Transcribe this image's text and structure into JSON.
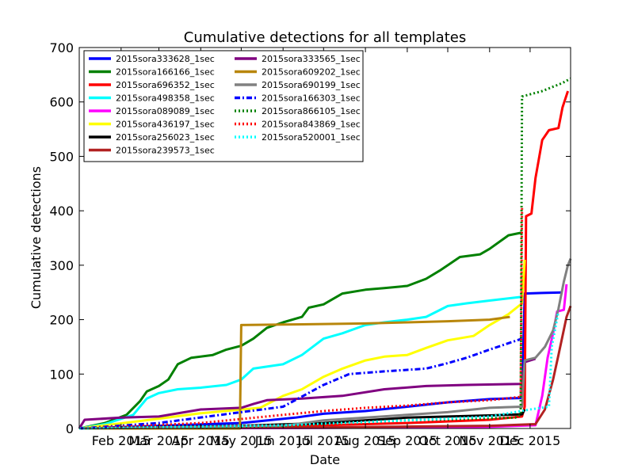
{
  "chart_data": {
    "type": "line",
    "title": "Cumulative detections for all templates",
    "xlabel": "Date",
    "ylabel": "Cumulative detections",
    "xlim": [
      "2015-01-01",
      "2015-12-31"
    ],
    "ylim": [
      0,
      700
    ],
    "grid": false,
    "legend_position": "top-left",
    "x_ticks": [
      {
        "date": "2015-02-01",
        "label": "Feb 2015"
      },
      {
        "date": "2015-03-01",
        "label": "Mar 2015"
      },
      {
        "date": "2015-04-01",
        "label": "Apr 2015"
      },
      {
        "date": "2015-05-01",
        "label": "May 2015"
      },
      {
        "date": "2015-06-01",
        "label": "Jun 2015"
      },
      {
        "date": "2015-07-01",
        "label": "Jul 2015"
      },
      {
        "date": "2015-08-01",
        "label": "Aug 2015"
      },
      {
        "date": "2015-09-01",
        "label": "Sep 2015"
      },
      {
        "date": "2015-10-01",
        "label": "Oct 2015"
      },
      {
        "date": "2015-11-01",
        "label": "Nov 2015"
      },
      {
        "date": "2015-12-01",
        "label": "Dec 2015"
      }
    ],
    "y_ticks": [
      0,
      100,
      200,
      300,
      400,
      500,
      600,
      700
    ],
    "series": [
      {
        "name": "2015sora333628_1sec",
        "color": "#0000ff",
        "style": "solid",
        "points": [
          [
            "2015-01-01",
            0
          ],
          [
            "2015-03-01",
            5
          ],
          [
            "2015-05-01",
            10
          ],
          [
            "2015-06-10",
            20
          ],
          [
            "2015-07-01",
            27
          ],
          [
            "2015-08-01",
            32
          ],
          [
            "2015-09-01",
            40
          ],
          [
            "2015-10-01",
            48
          ],
          [
            "2015-11-01",
            54
          ],
          [
            "2015-11-25",
            56
          ],
          [
            "2015-11-27",
            248
          ],
          [
            "2015-12-10",
            249
          ],
          [
            "2015-12-25",
            250
          ]
        ]
      },
      {
        "name": "2015sora166166_1sec",
        "color": "#008000",
        "style": "solid",
        "points": [
          [
            "2015-01-01",
            0
          ],
          [
            "2015-01-20",
            10
          ],
          [
            "2015-02-05",
            25
          ],
          [
            "2015-02-15",
            50
          ],
          [
            "2015-02-20",
            68
          ],
          [
            "2015-03-01",
            78
          ],
          [
            "2015-03-08",
            90
          ],
          [
            "2015-03-15",
            118
          ],
          [
            "2015-03-25",
            130
          ],
          [
            "2015-04-10",
            135
          ],
          [
            "2015-04-20",
            145
          ],
          [
            "2015-05-01",
            152
          ],
          [
            "2015-05-10",
            165
          ],
          [
            "2015-05-20",
            185
          ],
          [
            "2015-06-01",
            195
          ],
          [
            "2015-06-15",
            205
          ],
          [
            "2015-06-20",
            222
          ],
          [
            "2015-07-01",
            228
          ],
          [
            "2015-07-15",
            248
          ],
          [
            "2015-08-01",
            255
          ],
          [
            "2015-08-15",
            258
          ],
          [
            "2015-09-01",
            262
          ],
          [
            "2015-09-15",
            275
          ],
          [
            "2015-09-25",
            290
          ],
          [
            "2015-10-01",
            300
          ],
          [
            "2015-10-10",
            315
          ],
          [
            "2015-10-25",
            320
          ],
          [
            "2015-11-01",
            330
          ],
          [
            "2015-11-15",
            355
          ],
          [
            "2015-11-25",
            360
          ]
        ]
      },
      {
        "name": "2015sora696352_1sec",
        "color": "#ff0000",
        "style": "solid",
        "points": [
          [
            "2015-01-01",
            0
          ],
          [
            "2015-05-01",
            3
          ],
          [
            "2015-07-01",
            6
          ],
          [
            "2015-09-01",
            10
          ],
          [
            "2015-11-01",
            16
          ],
          [
            "2015-11-25",
            22
          ],
          [
            "2015-11-27",
            40
          ],
          [
            "2015-11-28",
            390
          ],
          [
            "2015-12-02",
            395
          ],
          [
            "2015-12-05",
            460
          ],
          [
            "2015-12-10",
            530
          ],
          [
            "2015-12-15",
            548
          ],
          [
            "2015-12-22",
            552
          ],
          [
            "2015-12-25",
            590
          ],
          [
            "2015-12-29",
            620
          ]
        ]
      },
      {
        "name": "2015sora498358_1sec",
        "color": "#00ffff",
        "style": "solid",
        "points": [
          [
            "2015-01-01",
            0
          ],
          [
            "2015-01-20",
            8
          ],
          [
            "2015-02-10",
            25
          ],
          [
            "2015-02-20",
            55
          ],
          [
            "2015-03-01",
            65
          ],
          [
            "2015-03-15",
            72
          ],
          [
            "2015-04-01",
            75
          ],
          [
            "2015-04-20",
            80
          ],
          [
            "2015-05-01",
            90
          ],
          [
            "2015-05-10",
            110
          ],
          [
            "2015-06-01",
            118
          ],
          [
            "2015-06-15",
            135
          ],
          [
            "2015-07-01",
            165
          ],
          [
            "2015-07-15",
            175
          ],
          [
            "2015-08-01",
            190
          ],
          [
            "2015-08-15",
            195
          ],
          [
            "2015-09-01",
            200
          ],
          [
            "2015-09-15",
            205
          ],
          [
            "2015-10-01",
            225
          ],
          [
            "2015-10-15",
            230
          ],
          [
            "2015-11-01",
            235
          ],
          [
            "2015-11-25",
            242
          ]
        ]
      },
      {
        "name": "2015sora089089_1sec",
        "color": "#ff00ff",
        "style": "solid",
        "points": [
          [
            "2015-01-01",
            0
          ],
          [
            "2015-07-01",
            1
          ],
          [
            "2015-11-01",
            3
          ],
          [
            "2015-12-05",
            6
          ],
          [
            "2015-12-10",
            60
          ],
          [
            "2015-12-14",
            130
          ],
          [
            "2015-12-18",
            175
          ],
          [
            "2015-12-21",
            215
          ],
          [
            "2015-12-26",
            218
          ],
          [
            "2015-12-28",
            265
          ]
        ]
      },
      {
        "name": "2015sora436197_1sec",
        "color": "#ffff00",
        "style": "solid",
        "points": [
          [
            "2015-01-01",
            0
          ],
          [
            "2015-03-01",
            18
          ],
          [
            "2015-04-01",
            28
          ],
          [
            "2015-05-15",
            38
          ],
          [
            "2015-06-01",
            60
          ],
          [
            "2015-06-15",
            72
          ],
          [
            "2015-07-01",
            95
          ],
          [
            "2015-07-15",
            110
          ],
          [
            "2015-08-01",
            125
          ],
          [
            "2015-08-15",
            132
          ],
          [
            "2015-09-01",
            135
          ],
          [
            "2015-09-15",
            148
          ],
          [
            "2015-10-01",
            162
          ],
          [
            "2015-10-20",
            170
          ],
          [
            "2015-11-01",
            190
          ],
          [
            "2015-11-15",
            210
          ],
          [
            "2015-11-25",
            230
          ],
          [
            "2015-11-27",
            310
          ]
        ]
      },
      {
        "name": "2015sora256023_1sec",
        "color": "#000000",
        "style": "solid",
        "points": [
          [
            "2015-01-01",
            0
          ],
          [
            "2015-05-01",
            5
          ],
          [
            "2015-07-01",
            10
          ],
          [
            "2015-09-01",
            20
          ],
          [
            "2015-11-01",
            24
          ],
          [
            "2015-11-25",
            26
          ],
          [
            "2015-11-27",
            35
          ]
        ]
      },
      {
        "name": "2015sora239573_1sec",
        "color": "#b22222",
        "style": "solid",
        "points": [
          [
            "2015-01-01",
            0
          ],
          [
            "2015-07-01",
            2
          ],
          [
            "2015-11-01",
            5
          ],
          [
            "2015-12-05",
            8
          ],
          [
            "2015-12-12",
            35
          ],
          [
            "2015-12-18",
            90
          ],
          [
            "2015-12-22",
            135
          ],
          [
            "2015-12-25",
            170
          ],
          [
            "2015-12-28",
            205
          ],
          [
            "2015-12-31",
            225
          ]
        ]
      },
      {
        "name": "2015sora333565_1sec",
        "color": "#800080",
        "style": "solid",
        "points": [
          [
            "2015-01-01",
            0
          ],
          [
            "2015-01-05",
            16
          ],
          [
            "2015-02-01",
            20
          ],
          [
            "2015-03-01",
            22
          ],
          [
            "2015-04-01",
            35
          ],
          [
            "2015-05-01",
            38
          ],
          [
            "2015-05-10",
            45
          ],
          [
            "2015-05-20",
            52
          ],
          [
            "2015-06-15",
            55
          ],
          [
            "2015-07-15",
            60
          ],
          [
            "2015-08-15",
            72
          ],
          [
            "2015-09-15",
            78
          ],
          [
            "2015-10-15",
            80
          ],
          [
            "2015-11-25",
            82
          ],
          [
            "2015-11-27",
            122
          ],
          [
            "2015-12-05",
            128
          ]
        ]
      },
      {
        "name": "2015sora609202_1sec",
        "color": "#b8860b",
        "style": "solid",
        "points": [
          [
            "2015-01-01",
            0
          ],
          [
            "2015-04-30",
            0
          ],
          [
            "2015-05-01",
            190
          ],
          [
            "2015-06-01",
            191
          ],
          [
            "2015-07-01",
            192
          ],
          [
            "2015-08-01",
            193
          ],
          [
            "2015-09-01",
            195
          ],
          [
            "2015-10-01",
            197
          ],
          [
            "2015-11-01",
            200
          ],
          [
            "2015-11-16",
            205
          ]
        ]
      },
      {
        "name": "2015sora690199_1sec",
        "color": "#808080",
        "style": "solid",
        "points": [
          [
            "2015-01-01",
            0
          ],
          [
            "2015-06-01",
            5
          ],
          [
            "2015-07-01",
            15
          ],
          [
            "2015-09-01",
            25
          ],
          [
            "2015-10-01",
            30
          ],
          [
            "2015-11-01",
            38
          ],
          [
            "2015-11-25",
            40
          ],
          [
            "2015-11-27",
            125
          ],
          [
            "2015-12-05",
            130
          ],
          [
            "2015-12-12",
            150
          ],
          [
            "2015-12-18",
            180
          ],
          [
            "2015-12-22",
            220
          ],
          [
            "2015-12-26",
            270
          ],
          [
            "2015-12-29",
            300
          ],
          [
            "2015-12-31",
            312
          ]
        ]
      },
      {
        "name": "2015sora166303_1sec",
        "color": "#0000ff",
        "style": "dashdot",
        "points": [
          [
            "2015-01-01",
            0
          ],
          [
            "2015-03-01",
            10
          ],
          [
            "2015-05-01",
            30
          ],
          [
            "2015-06-01",
            40
          ],
          [
            "2015-07-01",
            80
          ],
          [
            "2015-07-20",
            100
          ],
          [
            "2015-08-15",
            105
          ],
          [
            "2015-09-15",
            110
          ],
          [
            "2015-10-01",
            120
          ],
          [
            "2015-10-15",
            130
          ],
          [
            "2015-11-01",
            145
          ],
          [
            "2015-11-25",
            165
          ]
        ]
      },
      {
        "name": "2015sora866105_1sec",
        "color": "#008000",
        "style": "dotted",
        "points": [
          [
            "2015-01-01",
            0
          ],
          [
            "2015-06-01",
            5
          ],
          [
            "2015-09-01",
            15
          ],
          [
            "2015-11-20",
            20
          ],
          [
            "2015-11-24",
            25
          ],
          [
            "2015-11-25",
            610
          ],
          [
            "2015-12-10",
            620
          ],
          [
            "2015-12-25",
            635
          ],
          [
            "2015-12-31",
            643
          ]
        ]
      },
      {
        "name": "2015sora843869_1sec",
        "color": "#ff0000",
        "style": "dotted",
        "points": [
          [
            "2015-01-01",
            0
          ],
          [
            "2015-04-01",
            10
          ],
          [
            "2015-06-01",
            25
          ],
          [
            "2015-07-01",
            32
          ],
          [
            "2015-08-01",
            38
          ],
          [
            "2015-09-01",
            42
          ],
          [
            "2015-10-01",
            48
          ],
          [
            "2015-11-01",
            52
          ],
          [
            "2015-11-24",
            58
          ],
          [
            "2015-11-25",
            405
          ]
        ]
      },
      {
        "name": "2015sora520001_1sec",
        "color": "#00ffff",
        "style": "dotted",
        "points": [
          [
            "2015-01-01",
            0
          ],
          [
            "2015-06-01",
            6
          ],
          [
            "2015-08-01",
            12
          ],
          [
            "2015-10-01",
            18
          ],
          [
            "2015-11-01",
            22
          ],
          [
            "2015-12-01",
            35
          ],
          [
            "2015-12-15",
            40
          ],
          [
            "2015-12-17",
            150
          ],
          [
            "2015-12-22",
            215
          ]
        ]
      }
    ]
  }
}
